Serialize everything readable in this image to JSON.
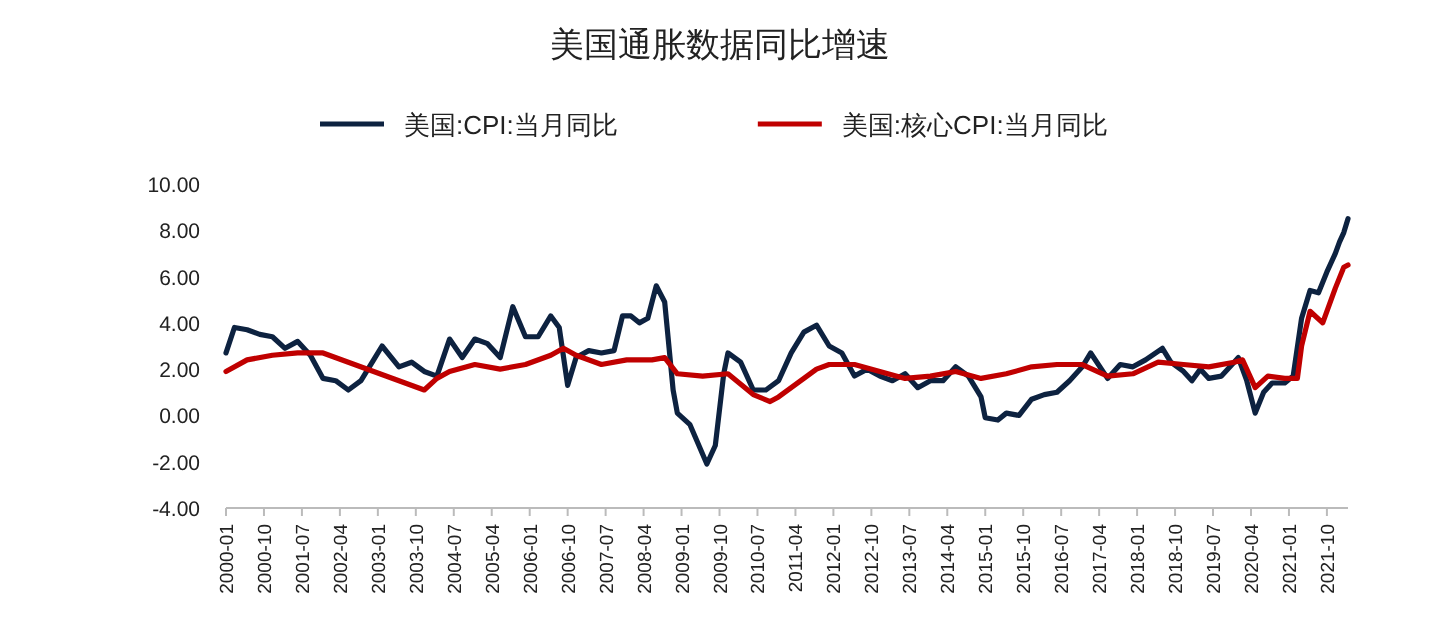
{
  "chart_data": {
    "type": "line",
    "title": "美国通胀数据同比增速",
    "series": [
      {
        "name": "美国:CPI:当月同比",
        "color": "#0d2240",
        "x": [
          "2000-01",
          "2000-03",
          "2000-06",
          "2000-09",
          "2000-12",
          "2001-03",
          "2001-06",
          "2001-09",
          "2001-12",
          "2002-03",
          "2002-06",
          "2002-09",
          "2002-12",
          "2003-02",
          "2003-06",
          "2003-09",
          "2003-12",
          "2004-03",
          "2004-06",
          "2004-09",
          "2004-12",
          "2005-03",
          "2005-06",
          "2005-09",
          "2005-12",
          "2006-03",
          "2006-06",
          "2006-08",
          "2006-10",
          "2006-12",
          "2007-03",
          "2007-06",
          "2007-09",
          "2007-11",
          "2008-01",
          "2008-03",
          "2008-05",
          "2008-07",
          "2008-09",
          "2008-11",
          "2008-12",
          "2009-03",
          "2009-07",
          "2009-09",
          "2009-11",
          "2009-12",
          "2010-03",
          "2010-06",
          "2010-09",
          "2010-12",
          "2011-03",
          "2011-06",
          "2011-09",
          "2011-12",
          "2012-03",
          "2012-06",
          "2012-09",
          "2012-12",
          "2013-03",
          "2013-06",
          "2013-09",
          "2013-12",
          "2014-03",
          "2014-06",
          "2014-09",
          "2014-12",
          "2015-01",
          "2015-04",
          "2015-06",
          "2015-09",
          "2015-12",
          "2016-03",
          "2016-06",
          "2016-09",
          "2016-12",
          "2017-02",
          "2017-06",
          "2017-09",
          "2017-12",
          "2018-03",
          "2018-07",
          "2018-09",
          "2018-12",
          "2019-02",
          "2019-04",
          "2019-06",
          "2019-09",
          "2019-12",
          "2020-01",
          "2020-03",
          "2020-05",
          "2020-07",
          "2020-09",
          "2020-12",
          "2021-02",
          "2021-04",
          "2021-06",
          "2021-08",
          "2021-10",
          "2021-12",
          "2022-01",
          "2022-02",
          "2022-03"
        ],
        "values": [
          2.7,
          3.8,
          3.7,
          3.5,
          3.4,
          2.9,
          3.2,
          2.6,
          1.6,
          1.5,
          1.1,
          1.5,
          2.4,
          3.0,
          2.1,
          2.3,
          1.9,
          1.7,
          3.3,
          2.5,
          3.3,
          3.1,
          2.5,
          4.7,
          3.4,
          3.4,
          4.3,
          3.8,
          1.3,
          2.5,
          2.8,
          2.7,
          2.8,
          4.3,
          4.3,
          4.0,
          4.2,
          5.6,
          4.9,
          1.1,
          0.1,
          -0.4,
          -2.1,
          -1.3,
          1.8,
          2.7,
          2.3,
          1.1,
          1.1,
          1.5,
          2.7,
          3.6,
          3.9,
          3.0,
          2.7,
          1.7,
          2.0,
          1.7,
          1.5,
          1.8,
          1.2,
          1.5,
          1.5,
          2.1,
          1.7,
          0.8,
          -0.1,
          -0.2,
          0.1,
          0.0,
          0.7,
          0.9,
          1.0,
          1.5,
          2.1,
          2.7,
          1.6,
          2.2,
          2.1,
          2.4,
          2.9,
          2.3,
          1.9,
          1.5,
          2.0,
          1.6,
          1.7,
          2.3,
          2.5,
          1.5,
          0.1,
          1.0,
          1.4,
          1.4,
          1.7,
          4.2,
          5.4,
          5.3,
          6.2,
          7.0,
          7.5,
          7.9,
          8.5
        ]
      },
      {
        "name": "美国:核心CPI:当月同比",
        "color": "#c00000",
        "x": [
          "2000-01",
          "2000-06",
          "2000-12",
          "2001-06",
          "2001-12",
          "2002-06",
          "2002-12",
          "2003-06",
          "2003-12",
          "2004-03",
          "2004-06",
          "2004-12",
          "2005-06",
          "2005-12",
          "2006-06",
          "2006-09",
          "2006-12",
          "2007-06",
          "2007-12",
          "2008-06",
          "2008-09",
          "2008-12",
          "2009-06",
          "2009-12",
          "2010-06",
          "2010-10",
          "2010-12",
          "2011-06",
          "2011-09",
          "2011-12",
          "2012-06",
          "2012-12",
          "2013-06",
          "2013-12",
          "2014-06",
          "2014-12",
          "2015-06",
          "2015-12",
          "2016-06",
          "2016-12",
          "2017-06",
          "2017-12",
          "2018-06",
          "2018-12",
          "2019-06",
          "2019-12",
          "2020-02",
          "2020-05",
          "2020-08",
          "2020-12",
          "2021-03",
          "2021-04",
          "2021-06",
          "2021-09",
          "2021-12",
          "2022-02",
          "2022-03"
        ],
        "values": [
          1.9,
          2.4,
          2.6,
          2.7,
          2.7,
          2.3,
          1.9,
          1.5,
          1.1,
          1.6,
          1.9,
          2.2,
          2.0,
          2.2,
          2.6,
          2.9,
          2.6,
          2.2,
          2.4,
          2.4,
          2.5,
          1.8,
          1.7,
          1.8,
          0.9,
          0.6,
          0.8,
          1.6,
          2.0,
          2.2,
          2.2,
          1.9,
          1.6,
          1.7,
          1.9,
          1.6,
          1.8,
          2.1,
          2.2,
          2.2,
          1.7,
          1.8,
          2.3,
          2.2,
          2.1,
          2.3,
          2.4,
          1.2,
          1.7,
          1.6,
          1.6,
          3.0,
          4.5,
          4.0,
          5.5,
          6.4,
          6.5
        ]
      }
    ],
    "xlim": [
      "2000-01",
      "2022-03"
    ],
    "xticks": [
      "2000-01",
      "2000-10",
      "2001-07",
      "2002-04",
      "2003-01",
      "2003-10",
      "2004-07",
      "2005-04",
      "2006-01",
      "2006-10",
      "2007-07",
      "2008-04",
      "2009-01",
      "2009-10",
      "2010-07",
      "2011-04",
      "2012-01",
      "2012-10",
      "2013-07",
      "2014-04",
      "2015-01",
      "2015-10",
      "2016-07",
      "2017-04",
      "2018-01",
      "2018-10",
      "2019-07",
      "2020-04",
      "2021-01",
      "2021-10"
    ],
    "ylim": [
      -4,
      10
    ],
    "yticks": [
      {
        "value": 10,
        "label": "10.00"
      },
      {
        "value": 8,
        "label": "8.00"
      },
      {
        "value": 6,
        "label": "6.00"
      },
      {
        "value": 4,
        "label": "4.00"
      },
      {
        "value": 2,
        "label": "2.00"
      },
      {
        "value": 0,
        "label": "0.00"
      },
      {
        "value": -2,
        "label": "-2.00"
      },
      {
        "value": -4,
        "label": "-4.00"
      }
    ],
    "legend": "top"
  }
}
